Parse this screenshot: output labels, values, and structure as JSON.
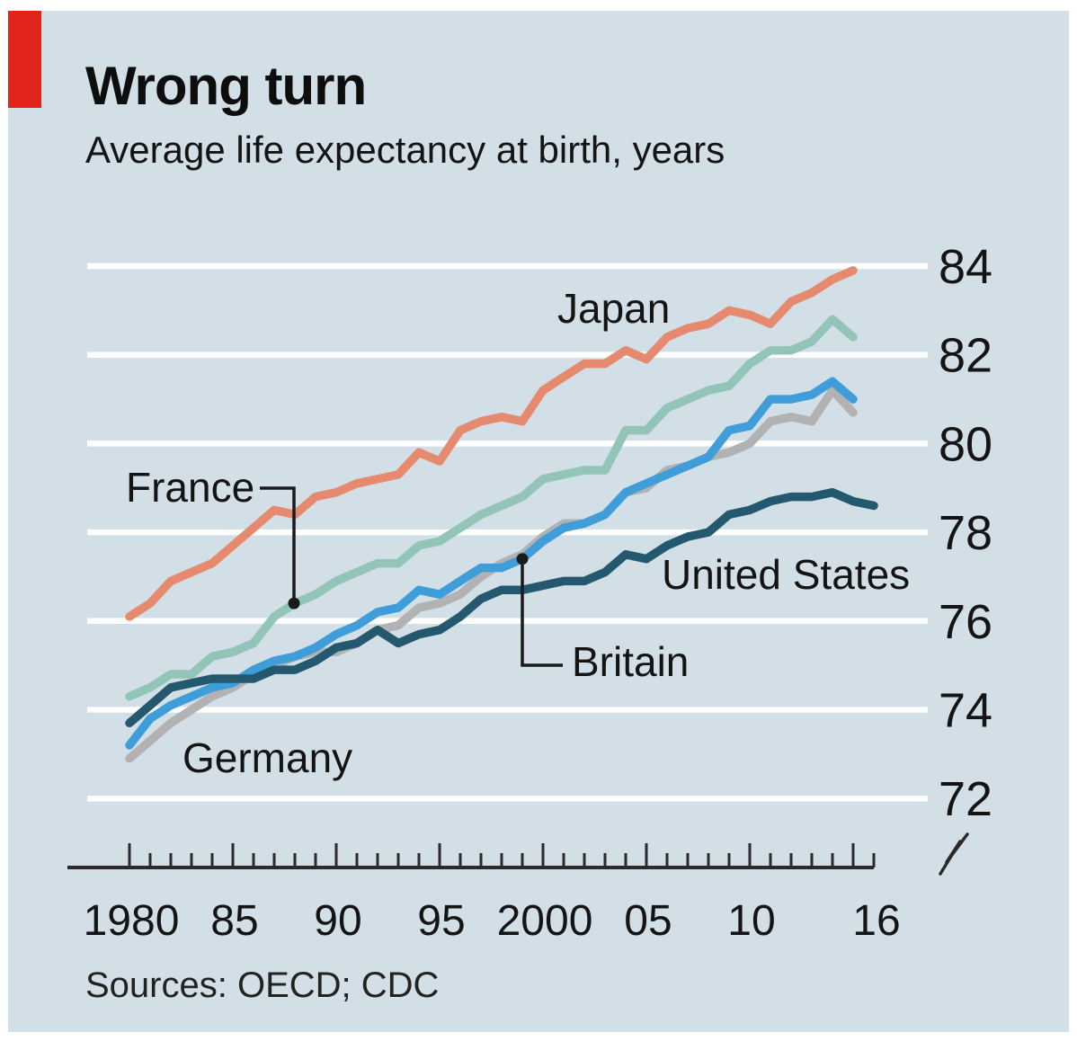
{
  "page": {
    "background": "#ffffff",
    "panel_background": "#d3dfe6",
    "accent_red": "#e1251b",
    "gridline_color": "#ffffff",
    "axis_color": "#2a2a2a",
    "text_color": "#141414"
  },
  "header": {
    "title": "Wrong turn",
    "subtitle": "Average life expectancy at birth, years"
  },
  "footer": {
    "sources": "Sources: OECD; CDC"
  },
  "chart_data": {
    "type": "line",
    "title": "Wrong turn",
    "subtitle": "Average life expectancy at birth, years",
    "grid": true,
    "legend_position": "inline-labels",
    "x_axis": {
      "start": 1980,
      "end": 2016,
      "tick_every": 1,
      "major_tick_every": 5,
      "labels": [
        {
          "year": 1980,
          "text": "1980"
        },
        {
          "year": 1985,
          "text": "85"
        },
        {
          "year": 1990,
          "text": "90"
        },
        {
          "year": 1995,
          "text": "95"
        },
        {
          "year": 2000,
          "text": "2000"
        },
        {
          "year": 2005,
          "text": "05"
        },
        {
          "year": 2010,
          "text": "10"
        },
        {
          "year": 2016,
          "text": "16"
        }
      ]
    },
    "y_axis": {
      "side": "right",
      "ticks": [
        84,
        82,
        80,
        78,
        76,
        74,
        72
      ],
      "range": [
        72,
        84
      ],
      "axis_break": true
    },
    "series": [
      {
        "name": "Japan",
        "color": "#e68a6f",
        "start_year": 1980,
        "values": [
          76.1,
          76.4,
          76.9,
          77.1,
          77.3,
          77.7,
          78.1,
          78.5,
          78.4,
          78.8,
          78.9,
          79.1,
          79.2,
          79.3,
          79.8,
          79.6,
          80.3,
          80.5,
          80.6,
          80.5,
          81.2,
          81.5,
          81.8,
          81.8,
          82.1,
          81.9,
          82.4,
          82.6,
          82.7,
          83.0,
          82.9,
          82.7,
          83.2,
          83.4,
          83.7,
          83.9
        ]
      },
      {
        "name": "France",
        "color": "#92c4b7",
        "start_year": 1980,
        "values": [
          74.3,
          74.5,
          74.8,
          74.8,
          75.2,
          75.3,
          75.5,
          76.1,
          76.4,
          76.6,
          76.9,
          77.1,
          77.3,
          77.3,
          77.7,
          77.8,
          78.1,
          78.4,
          78.6,
          78.8,
          79.2,
          79.3,
          79.4,
          79.4,
          80.3,
          80.3,
          80.8,
          81.0,
          81.2,
          81.3,
          81.8,
          82.1,
          82.1,
          82.3,
          82.8,
          82.4
        ]
      },
      {
        "name": "Germany",
        "color": "#b2b2b2",
        "start_year": 1980,
        "values": [
          72.9,
          73.3,
          73.7,
          74.0,
          74.3,
          74.5,
          74.8,
          75.0,
          75.2,
          75.3,
          75.3,
          75.5,
          75.8,
          75.9,
          76.3,
          76.4,
          76.6,
          77.0,
          77.3,
          77.5,
          77.9,
          78.2,
          78.2,
          78.4,
          78.9,
          79.0,
          79.4,
          79.5,
          79.7,
          79.8,
          80.0,
          80.5,
          80.6,
          80.5,
          81.2,
          80.7
        ]
      },
      {
        "name": "Britain",
        "color": "#3f9ed9",
        "start_year": 1980,
        "values": [
          73.2,
          73.8,
          74.1,
          74.3,
          74.5,
          74.6,
          74.9,
          75.1,
          75.2,
          75.4,
          75.7,
          75.9,
          76.2,
          76.3,
          76.7,
          76.6,
          76.9,
          77.2,
          77.2,
          77.4,
          77.8,
          78.1,
          78.2,
          78.4,
          78.9,
          79.1,
          79.3,
          79.5,
          79.7,
          80.3,
          80.4,
          81.0,
          81.0,
          81.1,
          81.4,
          81.0
        ]
      },
      {
        "name": "United States",
        "color": "#24586f",
        "start_year": 1980,
        "values": [
          73.7,
          74.1,
          74.5,
          74.6,
          74.7,
          74.7,
          74.7,
          74.9,
          74.9,
          75.1,
          75.4,
          75.5,
          75.8,
          75.5,
          75.7,
          75.8,
          76.1,
          76.5,
          76.7,
          76.7,
          76.8,
          76.9,
          76.9,
          77.1,
          77.5,
          77.4,
          77.7,
          77.9,
          78.0,
          78.4,
          78.5,
          78.7,
          78.8,
          78.8,
          78.9,
          78.7,
          78.6
        ]
      }
    ],
    "callouts": [
      {
        "series": "France",
        "year": 1988
      },
      {
        "series": "Britain",
        "year": 1999
      }
    ]
  }
}
